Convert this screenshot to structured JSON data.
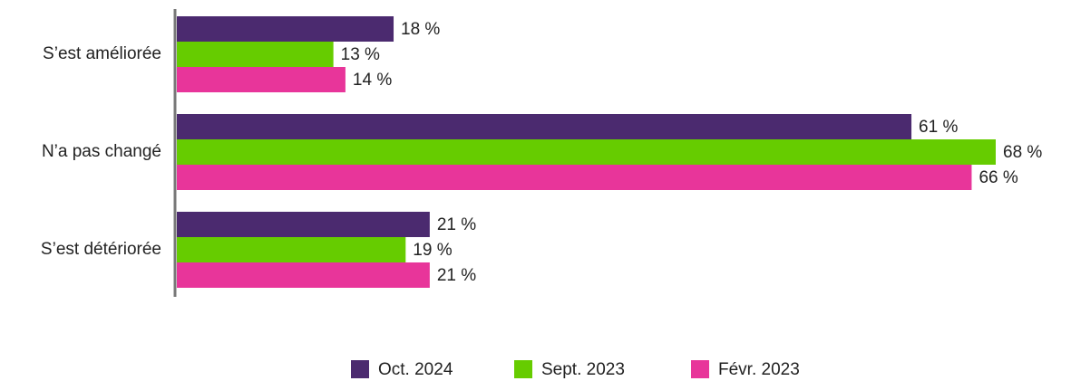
{
  "chart_data": {
    "type": "bar",
    "orientation": "horizontal",
    "categories": [
      "S’est améliorée",
      "N’a pas changé",
      "S’est détériorée"
    ],
    "series": [
      {
        "name": "Oct. 2024",
        "color": "#4b2a6f",
        "values": [
          18,
          61,
          21
        ],
        "value_labels": [
          "18 %",
          "61 %",
          "21 %"
        ]
      },
      {
        "name": "Sept. 2023",
        "color": "#66cc00",
        "values": [
          13,
          68,
          19
        ],
        "value_labels": [
          "13 %",
          "68 %",
          "19 %"
        ]
      },
      {
        "name": "Févr. 2023",
        "color": "#e8359a",
        "values": [
          14,
          66,
          21
        ],
        "value_labels": [
          "14 %",
          "66 %",
          "21 %"
        ]
      }
    ],
    "legend": "bottom"
  }
}
